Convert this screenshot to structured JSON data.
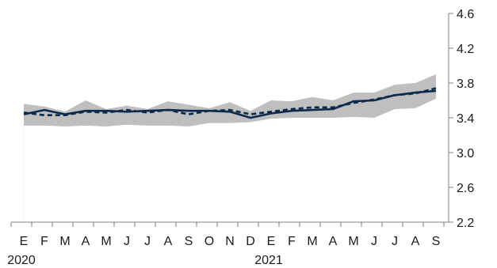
{
  "chart_data": {
    "type": "line",
    "title": "",
    "xlabel": "",
    "ylabel": "",
    "x": [
      "E",
      "F",
      "M",
      "A",
      "M",
      "J",
      "J",
      "A",
      "S",
      "O",
      "N",
      "D",
      "E",
      "F",
      "M",
      "A",
      "M",
      "J",
      "J",
      "A",
      "S"
    ],
    "year_labels": [
      {
        "index": 0,
        "label": "2020"
      },
      {
        "index": 12,
        "label": "2021"
      }
    ],
    "ylim": [
      2.2,
      4.6
    ],
    "yticks": [
      2.2,
      2.6,
      3.0,
      3.4,
      3.8,
      4.2,
      4.6
    ],
    "y_axis_side": "right",
    "grid": false,
    "legend": "none",
    "series": [
      {
        "style": "solid",
        "color": "#0d2a4c",
        "values": [
          3.44,
          3.49,
          3.44,
          3.48,
          3.48,
          3.47,
          3.48,
          3.49,
          3.48,
          3.48,
          3.47,
          3.4,
          3.45,
          3.48,
          3.49,
          3.5,
          3.59,
          3.6,
          3.66,
          3.69,
          3.71
        ]
      },
      {
        "style": "dashed",
        "color": "#0d2a4c",
        "values": [
          3.46,
          3.43,
          3.43,
          3.47,
          3.46,
          3.49,
          3.46,
          3.49,
          3.44,
          3.48,
          3.49,
          3.44,
          3.47,
          3.5,
          3.52,
          3.52,
          3.57,
          3.61,
          3.66,
          3.68,
          3.74
        ]
      }
    ],
    "band": {
      "color": "#bfbfbf",
      "upper": [
        3.56,
        3.53,
        3.47,
        3.6,
        3.5,
        3.54,
        3.5,
        3.59,
        3.55,
        3.51,
        3.58,
        3.48,
        3.6,
        3.59,
        3.64,
        3.6,
        3.69,
        3.69,
        3.78,
        3.8,
        3.9
      ],
      "lower": [
        3.31,
        3.31,
        3.3,
        3.31,
        3.3,
        3.32,
        3.31,
        3.31,
        3.3,
        3.34,
        3.34,
        3.35,
        3.39,
        3.4,
        3.4,
        3.4,
        3.41,
        3.4,
        3.5,
        3.51,
        3.62
      ]
    }
  }
}
